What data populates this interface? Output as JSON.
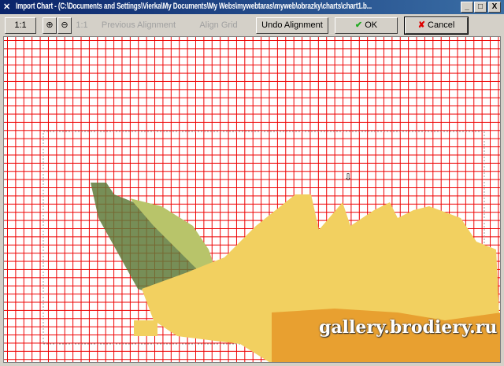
{
  "window": {
    "title": "Import Chart - (C:\\Documents and Settings\\Vierka\\My Documents\\My Webs\\mywebtaras\\myweb\\obrazky\\charts\\chart1.b...",
    "minimize": "_",
    "maximize": "□",
    "close": "X"
  },
  "toolbar": {
    "zoom_1to1": "1:1",
    "zoom_in_icon": "zoom-in",
    "zoom_out_icon": "zoom-out",
    "fit_label": "1:1",
    "previous_alignment": "Previous Alignment",
    "align_grid": "Align Grid",
    "undo_alignment": "Undo Alignment",
    "ok": "OK",
    "cancel": "Cancel"
  },
  "colors": {
    "grid": "#ee0000",
    "dark_green": "#5f7a3a",
    "light_green": "#b8c46a",
    "yellow": "#f2d060",
    "orange": "#e8a030"
  },
  "watermark": "gallery.brodiery.ru"
}
